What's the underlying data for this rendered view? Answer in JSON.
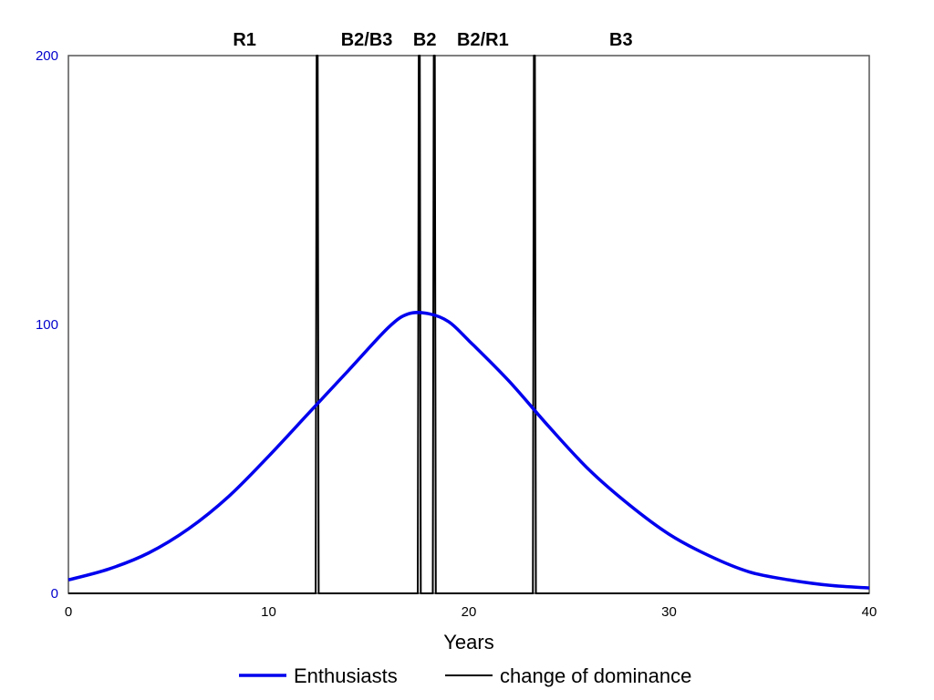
{
  "chart_data": {
    "type": "line",
    "xlabel": "Years",
    "ylabel": "",
    "xlim": [
      0,
      40
    ],
    "ylim": [
      0,
      200
    ],
    "xticks": [
      0,
      10,
      20,
      30,
      40
    ],
    "yticks": [
      0,
      100,
      200
    ],
    "y_tick_color": "#0000cc",
    "grid": false,
    "legend_position": "bottom-center",
    "phase_labels": [
      {
        "label": "R1",
        "x": 8.8
      },
      {
        "label": "B2/B3",
        "x": 14.9
      },
      {
        "label": "B2",
        "x": 17.8
      },
      {
        "label": "B2/R1",
        "x": 20.7
      },
      {
        "label": "B3",
        "x": 27.6
      }
    ],
    "series": [
      {
        "name": "Enthusiasts",
        "color": "#0000ee",
        "x": [
          0,
          2,
          4,
          6,
          8,
          10,
          12,
          14,
          16,
          17,
          18,
          19,
          20,
          22,
          24,
          26,
          28,
          30,
          32,
          34,
          36,
          38,
          40
        ],
        "y": [
          5,
          9,
          15,
          24,
          36,
          51,
          67,
          83,
          99,
          104,
          104,
          101,
          94,
          79,
          62,
          46,
          33,
          22,
          14,
          8,
          5,
          3,
          2
        ]
      },
      {
        "name": "change of dominance",
        "color": "#000000",
        "x": [
          0,
          12.35,
          12.4,
          12.45,
          12.5,
          12.55,
          17.45,
          17.5,
          17.55,
          17.6,
          17.65,
          18.2,
          18.25,
          18.3,
          18.35,
          18.4,
          23.2,
          23.25,
          23.3,
          23.35,
          23.4,
          40
        ],
        "y": [
          0,
          0,
          200,
          200,
          0,
          0,
          0,
          200,
          200,
          0,
          0,
          0,
          200,
          200,
          0,
          0,
          0,
          200,
          200,
          0,
          0,
          0
        ]
      }
    ]
  }
}
